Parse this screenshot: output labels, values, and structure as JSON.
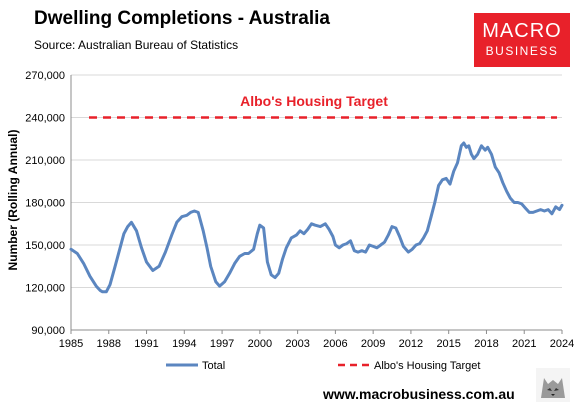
{
  "header": {
    "title": "Dwelling Completions - Australia",
    "source": "Source: Australian Bureau of Statistics"
  },
  "logo": {
    "line1": "MACRO",
    "line2": "BUSINESS"
  },
  "footer": {
    "website": "www.macrobusiness.com.au"
  },
  "colors": {
    "series": "#5b86c0",
    "target": "#e8212a",
    "brand": "#e8212a"
  },
  "chart_data": {
    "type": "line",
    "ylabel": "Number (Rolling Annual)",
    "xlabel": "",
    "xlim": [
      1985,
      2024
    ],
    "ylim": [
      90000,
      270000
    ],
    "x_ticks": [
      "1985",
      "1988",
      "1991",
      "1994",
      "1997",
      "2000",
      "2003",
      "2006",
      "2009",
      "2012",
      "2015",
      "2018",
      "2021",
      "2024"
    ],
    "y_ticks": [
      "90,000",
      "120,000",
      "150,000",
      "180,000",
      "210,000",
      "240,000",
      "270,000"
    ],
    "grid": "horizontal",
    "legend": "bottom",
    "annotation": "Albo's Housing Target",
    "series": [
      {
        "name": "Total",
        "x": [
          1985,
          1985.5,
          1986,
          1986.5,
          1987,
          1987.3,
          1987.5,
          1987.8,
          1988.1,
          1988.5,
          1988.9,
          1989.2,
          1989.5,
          1989.8,
          1990.2,
          1990.6,
          1991,
          1991.5,
          1992,
          1992.5,
          1993,
          1993.4,
          1993.8,
          1994.2,
          1994.5,
          1994.8,
          1995.1,
          1995.5,
          1995.8,
          1996.1,
          1996.5,
          1996.8,
          1997.2,
          1997.6,
          1998,
          1998.4,
          1998.8,
          1999.1,
          1999.5,
          1999.8,
          2000,
          2000.3,
          2000.6,
          2000.9,
          2001.2,
          2001.5,
          2001.8,
          2002.1,
          2002.5,
          2002.9,
          2003.2,
          2003.5,
          2003.8,
          2004.1,
          2004.4,
          2004.8,
          2005.2,
          2005.5,
          2005.8,
          2006,
          2006.3,
          2006.6,
          2006.9,
          2007.2,
          2007.5,
          2007.8,
          2008.1,
          2008.4,
          2008.7,
          2009,
          2009.3,
          2009.6,
          2009.9,
          2010.2,
          2010.5,
          2010.8,
          2011.1,
          2011.4,
          2011.8,
          2012.1,
          2012.4,
          2012.7,
          2013,
          2013.3,
          2013.6,
          2013.9,
          2014.2,
          2014.5,
          2014.8,
          2015.1,
          2015.4,
          2015.7,
          2016,
          2016.2,
          2016.4,
          2016.6,
          2016.8,
          2017,
          2017.3,
          2017.6,
          2017.9,
          2018.1,
          2018.4,
          2018.7,
          2019,
          2019.3,
          2019.6,
          2019.9,
          2020.2,
          2020.5,
          2020.8,
          2021.1,
          2021.4,
          2021.7,
          2022,
          2022.3,
          2022.6,
          2022.9,
          2023.2,
          2023.5,
          2023.8,
          2024
        ],
        "values": [
          147000,
          144000,
          137000,
          128000,
          121000,
          118000,
          117000,
          117000,
          122000,
          135000,
          148000,
          158000,
          163000,
          166000,
          160000,
          148000,
          138000,
          132000,
          135000,
          145000,
          157000,
          166000,
          170000,
          171000,
          173000,
          174000,
          173000,
          160000,
          148000,
          135000,
          124000,
          121000,
          124000,
          130000,
          137000,
          142000,
          144000,
          144000,
          147000,
          158000,
          164000,
          162000,
          138000,
          129000,
          127000,
          130000,
          140000,
          148000,
          155000,
          157000,
          160000,
          158000,
          161000,
          165000,
          164000,
          163000,
          165000,
          161000,
          156000,
          150000,
          148000,
          150000,
          151000,
          153000,
          146000,
          145000,
          146000,
          145000,
          150000,
          149000,
          148000,
          150000,
          152000,
          157000,
          163000,
          162000,
          156000,
          149000,
          145000,
          147000,
          150000,
          151000,
          155000,
          160000,
          170000,
          180000,
          192000,
          196000,
          197000,
          193000,
          202000,
          208000,
          220000,
          222000,
          219000,
          220000,
          214000,
          211000,
          214000,
          220000,
          217000,
          219000,
          214000,
          205000,
          201000,
          194000,
          188000,
          183000,
          180000,
          180000,
          179000,
          176000,
          173000,
          173000,
          174000,
          175000,
          174000,
          175000,
          172000,
          177000,
          175000,
          178000
        ]
      },
      {
        "name": "Albo's Housing Target",
        "x": [
          1985,
          2024
        ],
        "values": [
          240000,
          240000
        ]
      }
    ]
  }
}
